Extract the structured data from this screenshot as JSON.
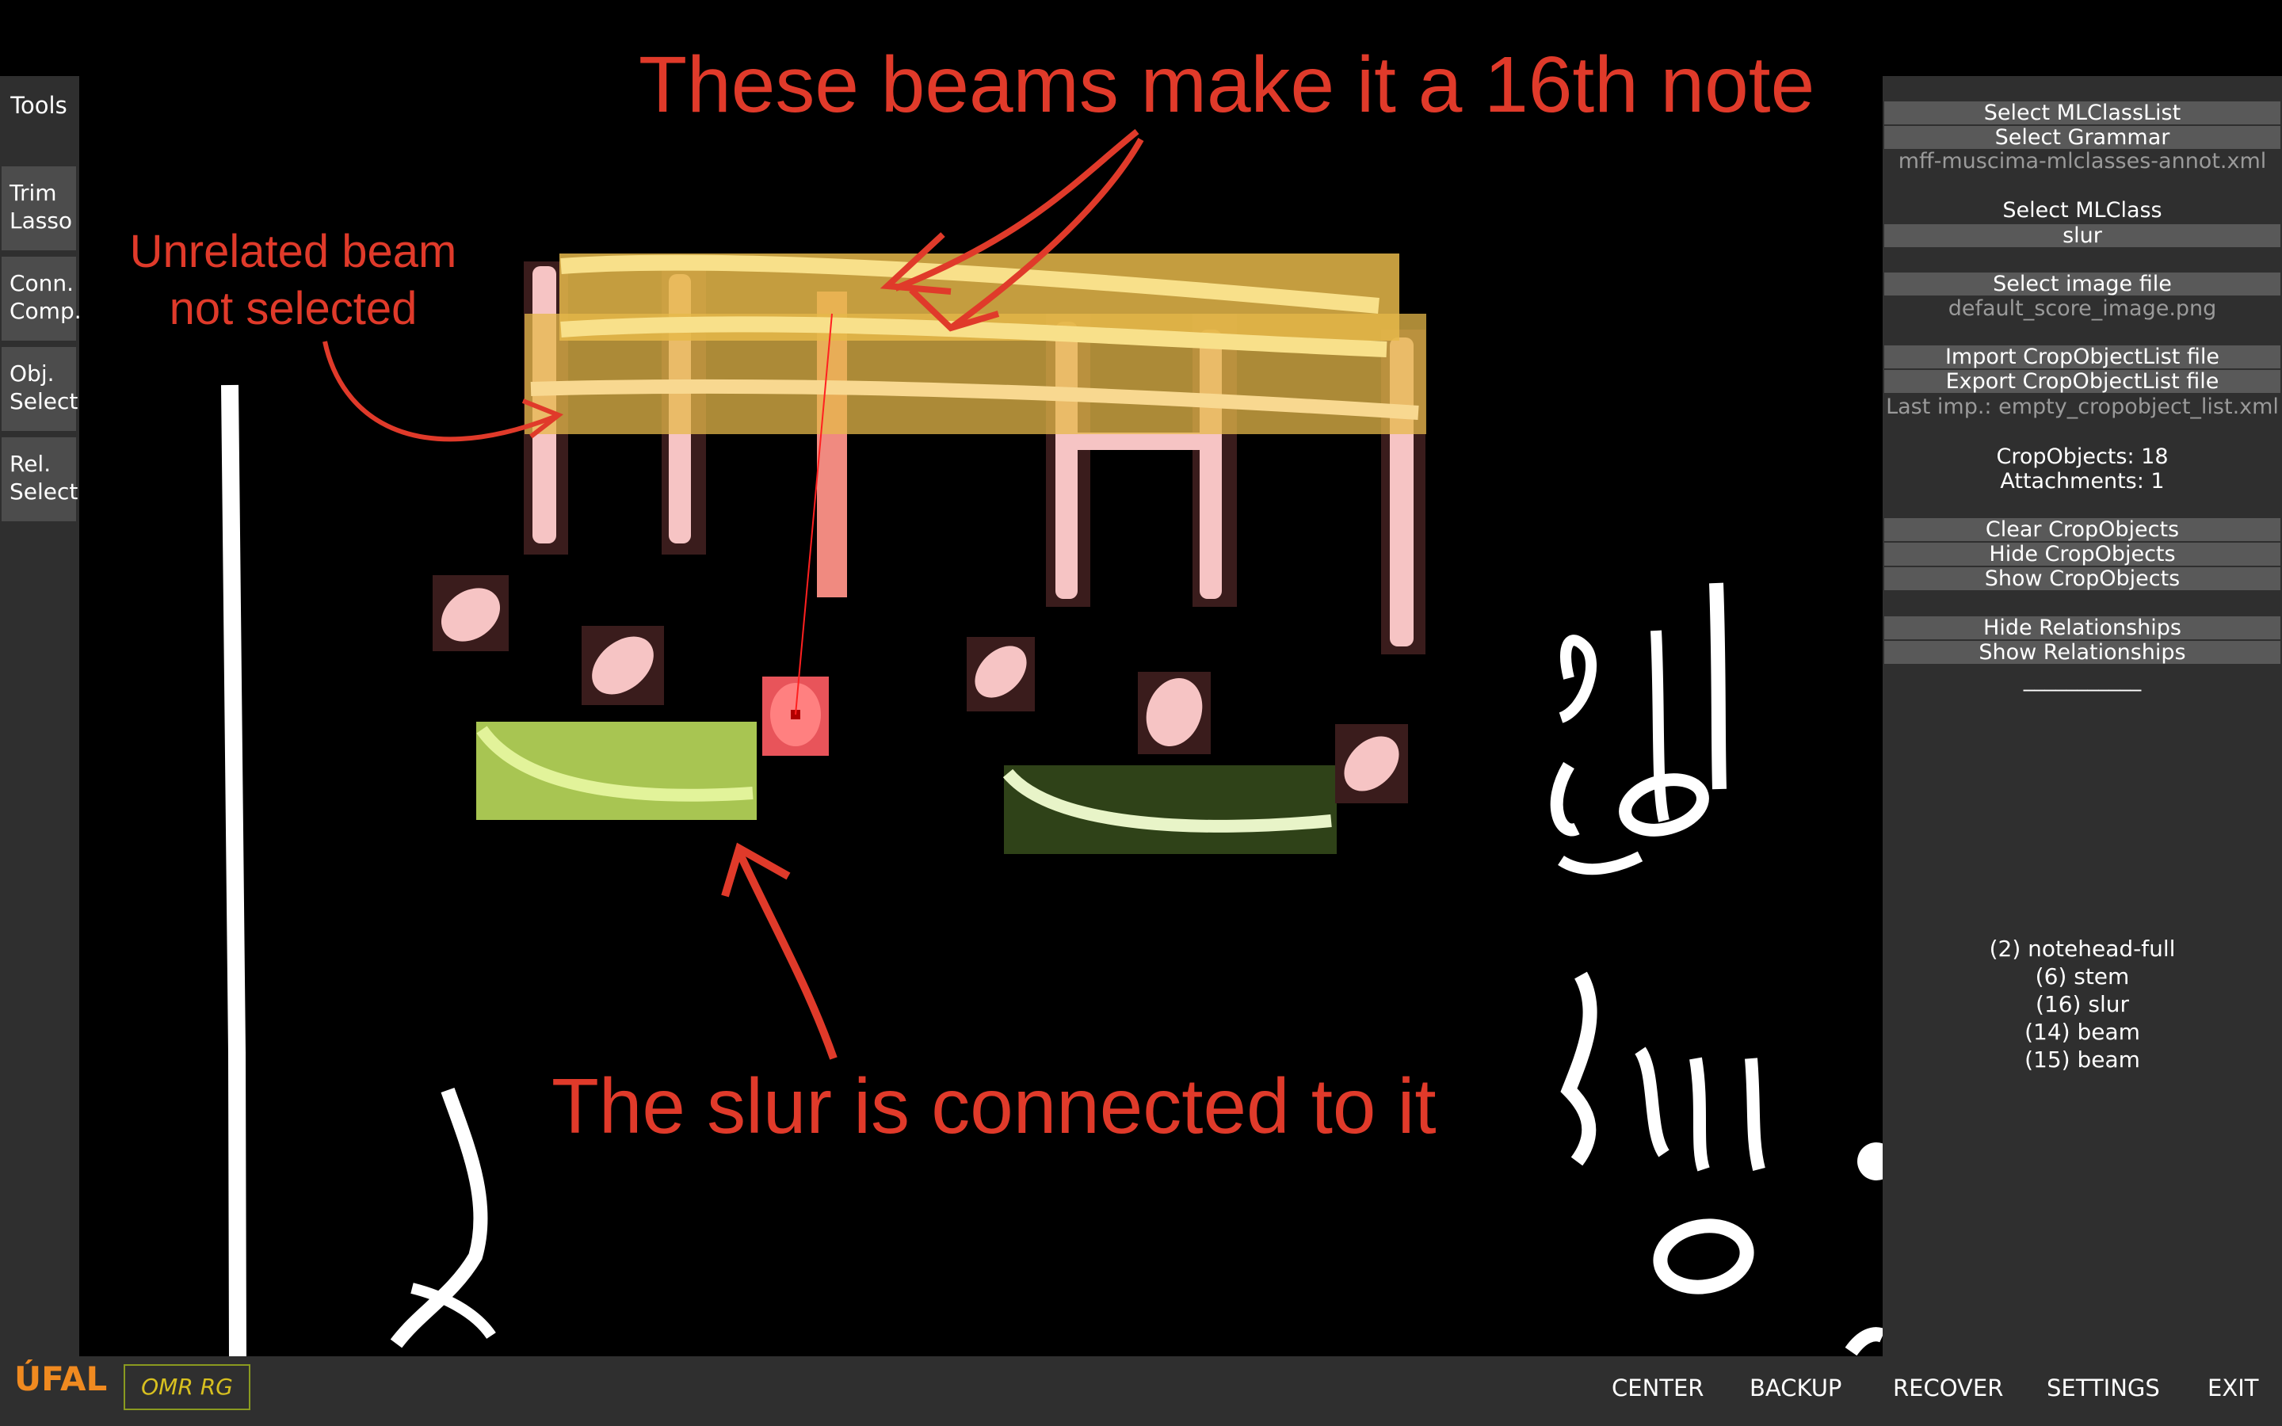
{
  "tools": {
    "header": "Tools",
    "buttons": [
      {
        "line1": "Trim",
        "line2": "Lasso"
      },
      {
        "line1": "Conn.",
        "line2": "Comp."
      },
      {
        "line1": "Obj.",
        "line2": "Select"
      },
      {
        "line1": "Rel.",
        "line2": "Select"
      }
    ]
  },
  "panel": {
    "select_mlclasslist": "Select MLClassList",
    "select_grammar": "Select Grammar",
    "grammar_file": "mff-muscima-mlclasses-annot.xml",
    "select_mlclass": "Select MLClass",
    "mlclass_value": "slur",
    "select_image_file": "Select image file",
    "image_file": "default_score_image.png",
    "import_label": "Import CropObjectList file",
    "export_label": "Export CropObjectList file",
    "last_import": "Last imp.: empty_cropobject_list.xml",
    "cropobjects_count": "CropObjects: 18",
    "attachments_count": "Attachments: 1",
    "clear_label": "Clear CropObjects",
    "hide_label": "Hide CropObjects",
    "show_label": "Show CropObjects",
    "hide_rel_label": "Hide Relationships",
    "show_rel_label": "Show Relationships",
    "separator": "___________",
    "relationships": [
      "(2)  notehead-full",
      "(6)  stem",
      "(16)  slur",
      "(14)  beam",
      "(15)  beam"
    ]
  },
  "bottom": {
    "center": "CENTER",
    "backup": "BACKUP",
    "recover": "RECOVER",
    "settings": "SETTINGS",
    "exit": "EXIT",
    "logo_ufal": "ÚFAL",
    "logo_omr": "OMR RG"
  },
  "annotations": {
    "beams": "These beams make it a 16th note",
    "unrelated_line1": "Unrelated beam",
    "unrelated_line2": "not selected",
    "slur": "The slur is connected to it"
  },
  "colors": {
    "annotation": "#e03a2a",
    "beam_highlight": "#e6b84a",
    "slur_selected": "#b4d050",
    "slur_other": "#3c5a20",
    "notehead": "#f6c4c4",
    "selected_notehead": "#ff6a6a",
    "panel_bg": "#2f2f2f",
    "button_bg": "#595959"
  }
}
